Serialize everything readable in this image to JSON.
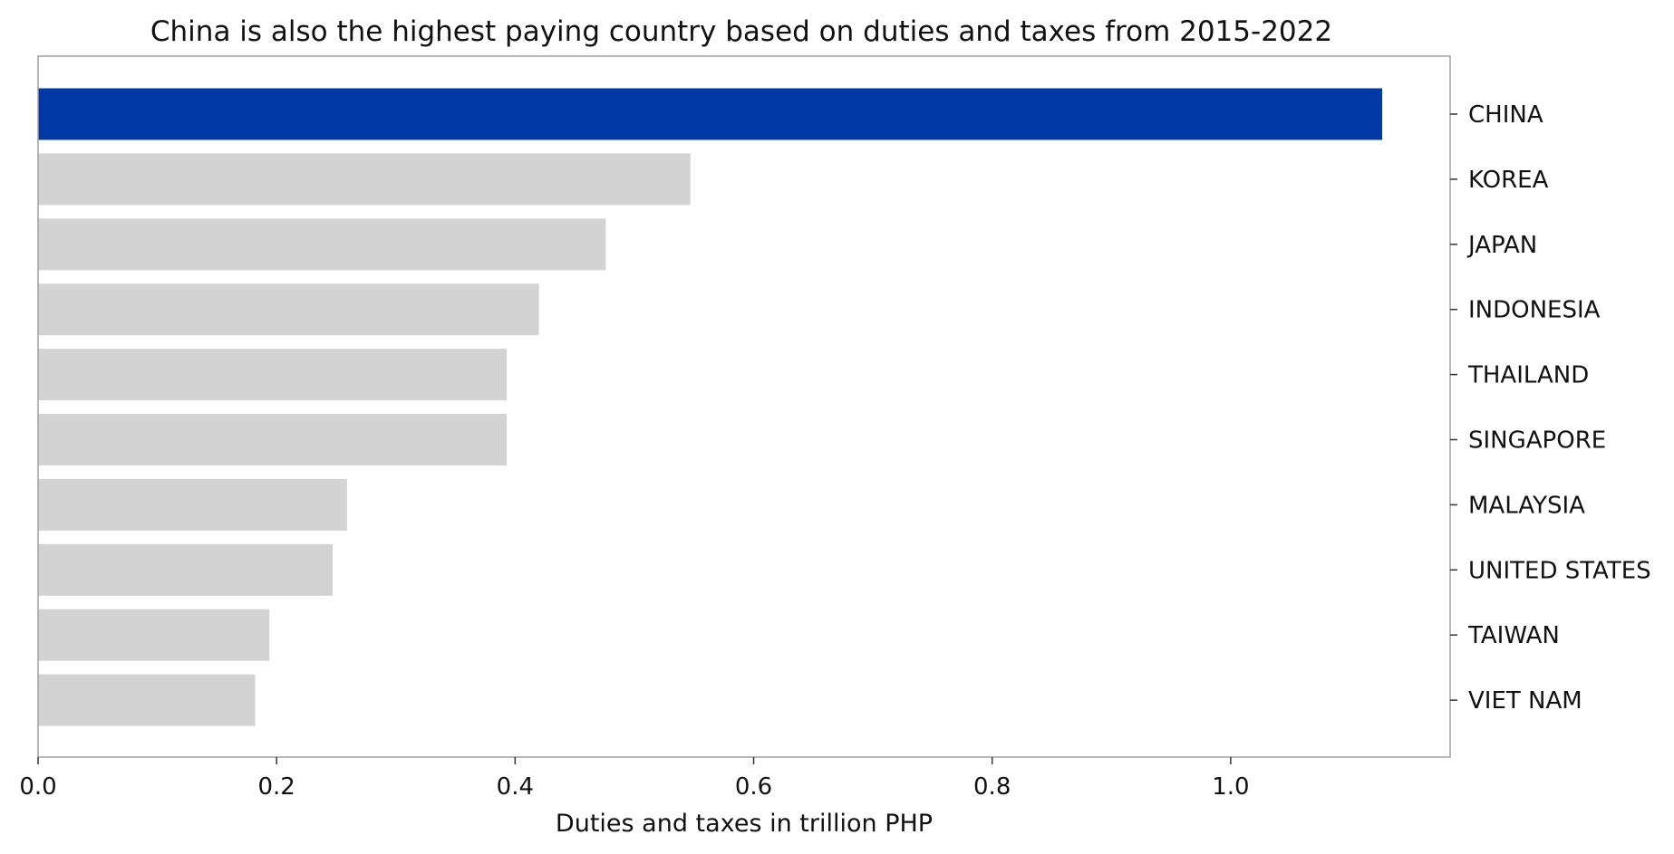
{
  "chart_data": {
    "type": "bar",
    "orientation": "horizontal",
    "title": "China is also the highest paying country based on duties and taxes from 2015-2022",
    "xlabel": "Duties and taxes in trillion PHP",
    "ylabel": "",
    "xlim": [
      0,
      1.184
    ],
    "x_ticks": [
      "0.0",
      "0.2",
      "0.4",
      "0.6",
      "0.8",
      "1.0"
    ],
    "y_axis_side": "right",
    "grid": false,
    "legend": "none",
    "categories": [
      "CHINA",
      "KOREA",
      "JAPAN",
      "INDONESIA",
      "THAILAND",
      "SINGAPORE",
      "MALAYSIA",
      "UNITED STATES",
      "TAIWAN",
      "VIET NAM"
    ],
    "values": [
      1.127,
      0.547,
      0.476,
      0.42,
      0.393,
      0.393,
      0.259,
      0.247,
      0.194,
      0.182
    ],
    "highlight": "CHINA",
    "colors": {
      "highlight": "#0039a6",
      "default": "#d3d3d3",
      "frame": "#a0a0a0",
      "text": "#111111"
    }
  }
}
